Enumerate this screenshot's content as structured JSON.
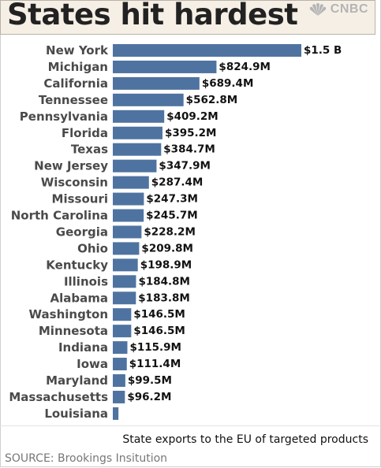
{
  "header": {
    "title": "States hit hardest",
    "logo_text": "CNBC"
  },
  "caption": "State exports to the EU of targeted products",
  "source": "SOURCE: Brookings Insitution",
  "colors": {
    "bar": "#4f73a0",
    "header_bg": "#f6efe6"
  },
  "chart_data": {
    "type": "bar",
    "orientation": "horizontal",
    "title": "States hit hardest",
    "xlabel": "",
    "ylabel": "",
    "grid": false,
    "unit": "USD",
    "categories": [
      "New York",
      "Michigan",
      "California",
      "Tennessee",
      "Pennsylvania",
      "Florida",
      "Texas",
      "New Jersey",
      "Wisconsin",
      "Missouri",
      "North Carolina",
      "Georgia",
      "Ohio",
      "Kentucky",
      "Illinois",
      "Alabama",
      "Washington",
      "Minnesota",
      "Indiana",
      "Iowa",
      "Maryland",
      "Massachusetts",
      "Louisiana"
    ],
    "values": [
      1500,
      824.9,
      689.4,
      562.8,
      409.2,
      395.2,
      384.7,
      347.9,
      287.4,
      247.3,
      245.7,
      228.2,
      209.8,
      198.9,
      184.8,
      183.8,
      146.5,
      146.5,
      115.9,
      111.4,
      99.5,
      96.2,
      45
    ],
    "value_labels": [
      "$1.5 B",
      "$824.9M",
      "$689.4M",
      "$562.8M",
      "$409.2M",
      "$395.2M",
      "$384.7M",
      "$347.9M",
      "$287.4M",
      "$247.3M",
      "$245.7M",
      "$228.2M",
      "$209.8M",
      "$198.9M",
      "$184.8M",
      "$183.8M",
      "$146.5M",
      "$146.5M",
      "$115.9M",
      "$111.4M",
      "$99.5M",
      "$96.2M",
      ""
    ],
    "value_units": "millions of dollars",
    "xlim": [
      0,
      1500
    ]
  }
}
